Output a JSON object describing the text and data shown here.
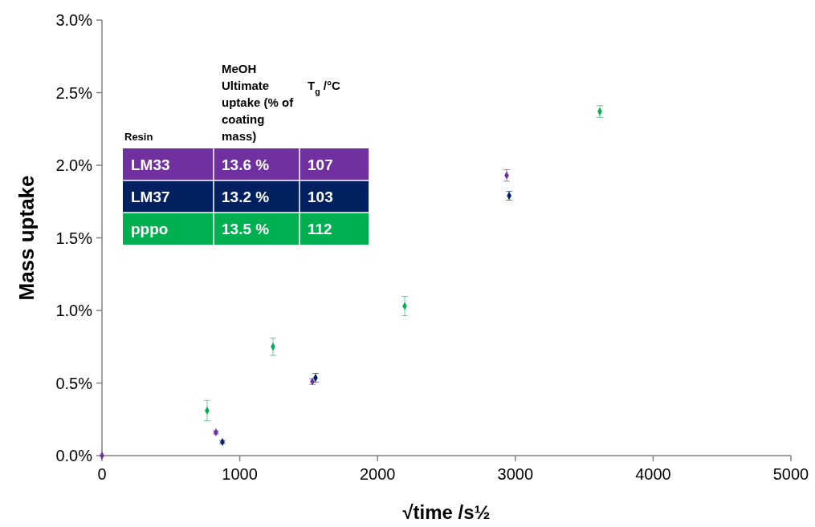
{
  "chart_data": {
    "type": "scatter",
    "xlabel": "√time /s½",
    "ylabel": "Mass uptake",
    "xlim": [
      0,
      5000
    ],
    "xticks": [
      0,
      1000,
      2000,
      3000,
      4000,
      5000
    ],
    "ylim": [
      0,
      3
    ],
    "yticks": [
      {
        "value": 0,
        "label": "0.0%"
      },
      {
        "value": 0.5,
        "label": "0.5%"
      },
      {
        "value": 1,
        "label": "1.0%"
      },
      {
        "value": 1.5,
        "label": "1.5%"
      },
      {
        "value": 2,
        "label": "2.0%"
      },
      {
        "value": 2.5,
        "label": "2.5%"
      },
      {
        "value": 3,
        "label": "3.0%"
      }
    ],
    "grid": false,
    "legend": "top left",
    "marker": "diamond",
    "series": [
      {
        "name": "LM33",
        "color": "#7030a0",
        "x": [
          0,
          827,
          1527,
          2937
        ],
        "values": [
          0,
          0.16,
          0.51,
          1.93
        ],
        "errors": [
          null,
          0.01,
          0.02,
          0.04
        ]
      },
      {
        "name": "LM37",
        "color": "#002060",
        "x": [
          874,
          1550,
          2955
        ],
        "values": [
          0.094,
          0.536,
          1.79
        ],
        "errors": [
          0.01,
          0.03,
          0.03
        ]
      },
      {
        "name": "pppo",
        "color": "#00b050",
        "x": [
          763,
          1241,
          2197,
          3613
        ],
        "values": [
          0.31,
          0.75,
          1.03,
          2.37
        ],
        "errors": [
          0.07,
          0.06,
          0.066,
          0.04
        ]
      }
    ],
    "annotations": [
      "Resin",
      "MeOH Ultimate uptake (% of coating mass)",
      "T$_{g}$ /°C",
      "13.6 %",
      "107",
      "13.2 %",
      "103",
      "13.5 %",
      "112"
    ]
  }
}
